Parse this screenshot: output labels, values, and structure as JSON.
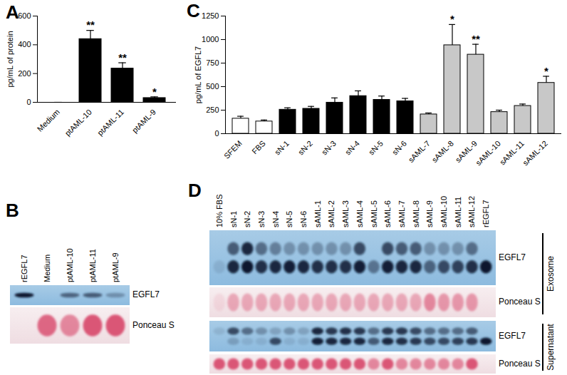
{
  "chart_data": [
    {
      "panel": "A",
      "type": "bar",
      "ylabel": "pg/mL of protein",
      "categories": [
        "Medium",
        "ptAML-10",
        "ptAML-11",
        "ptAML-9"
      ],
      "values": [
        0,
        440,
        235,
        30
      ],
      "errors": [
        0,
        60,
        40,
        8
      ],
      "significance": [
        null,
        "**",
        "**",
        "*"
      ],
      "color": "#000000",
      "ylim": [
        0,
        600
      ],
      "yticks": [
        0,
        200,
        400,
        600
      ]
    },
    {
      "panel": "C",
      "type": "bar",
      "ylabel": "pg/mL of EGFL7",
      "categories": [
        "SFEM",
        "FBS",
        "sN-1",
        "sN-2",
        "sN-3",
        "sN-4",
        "sN-5",
        "sN-6",
        "sAML-7",
        "sAML-8",
        "sAML-9",
        "sAML-10",
        "sAML-11",
        "sAML-12"
      ],
      "values": [
        160,
        130,
        255,
        265,
        330,
        400,
        360,
        345,
        205,
        940,
        840,
        230,
        295,
        540
      ],
      "errors": [
        25,
        15,
        20,
        25,
        50,
        55,
        40,
        30,
        15,
        220,
        110,
        20,
        20,
        70
      ],
      "significance": [
        null,
        null,
        null,
        null,
        null,
        null,
        null,
        null,
        null,
        "*",
        "**",
        null,
        null,
        "*"
      ],
      "colors": [
        "#ffffff",
        "#ffffff",
        "#000000",
        "#000000",
        "#000000",
        "#000000",
        "#000000",
        "#000000",
        "#c8c8c8",
        "#c8c8c8",
        "#c8c8c8",
        "#c8c8c8",
        "#c8c8c8",
        "#c8c8c8"
      ],
      "ylim": [
        0,
        1250
      ],
      "yticks": [
        0,
        250,
        500,
        750,
        1000,
        1250
      ]
    }
  ],
  "blots": [
    {
      "panel": "B",
      "lanes": [
        "rEGFL7",
        "Medium",
        "ptAML-10",
        "ptAML-11",
        "ptAML-9"
      ],
      "rows": [
        {
          "label": "EGFL7",
          "kind": "western",
          "bands": [
            [
              1,
              0,
              0.55,
              0.6,
              0.3
            ]
          ]
        },
        {
          "label": "Ponceau S",
          "kind": "ponceau",
          "bands": [
            [
              0,
              0.8,
              0.6,
              0.9,
              0.9
            ]
          ]
        }
      ]
    },
    {
      "panel": "D",
      "lanes": [
        "10% FBS",
        "sN-1",
        "sN-2",
        "sN-3",
        "sN-4",
        "sN-5",
        "sN-6",
        "sAML-1",
        "sAML-2",
        "sAML-3",
        "sAML-4",
        "sAML-5",
        "sAML-6",
        "sAML-7",
        "sAML-8",
        "sAML-9",
        "sAML-10",
        "sAML-11",
        "sAML-12",
        "rEGFL7"
      ],
      "rows": [
        {
          "label": "EGFL7",
          "kind": "western",
          "bands": [
            [
              0,
              0.6,
              0.9,
              0.5,
              0.4,
              0.3,
              0.3,
              0.3,
              0.3,
              0.3,
              0.7,
              0,
              0.7,
              0.6,
              0.6,
              0.3,
              0.3,
              0.3,
              0.5,
              0
            ],
            [
              0.1,
              0.9,
              1,
              0.85,
              0.9,
              0.95,
              0.9,
              0.85,
              0.85,
              0.85,
              0.95,
              0.45,
              0.95,
              0.9,
              0.9,
              0.55,
              0.7,
              0.75,
              0.85,
              1
            ]
          ]
        },
        {
          "label": "Ponceau S",
          "kind": "ponceau",
          "bands": [
            [
              0.1,
              0.4,
              0.4,
              0.4,
              0.4,
              0.4,
              0.4,
              0.4,
              0.4,
              0.4,
              0.4,
              0.4,
              0.4,
              0.4,
              0.4,
              0.6,
              0.5,
              0.5,
              0.5,
              0
            ]
          ]
        },
        {
          "label": "EGFL7",
          "kind": "western",
          "bands": [
            [
              0.1,
              0.7,
              0.5,
              0.3,
              0.2,
              0.3,
              0.2,
              0.9,
              0.8,
              0.85,
              0.8,
              0.5,
              0.8,
              0.8,
              0.7,
              0.5,
              0.5,
              0.5,
              0.6,
              0
            ],
            [
              0,
              0.2,
              0.1,
              0.1,
              0.7,
              0.1,
              0.1,
              0.95,
              0.9,
              0.9,
              0.9,
              0.6,
              0.9,
              0.85,
              0.8,
              0.7,
              0.7,
              0.75,
              0.8,
              1
            ]
          ]
        },
        {
          "label": "Ponceau S",
          "kind": "ponceau",
          "bands": [
            [
              0.9,
              0.9,
              0.9,
              0.9,
              0.9,
              0.9,
              0.9,
              0.9,
              0.9,
              0.9,
              0.9,
              0.6,
              0.9,
              0.6,
              0.6,
              0.6,
              0.6,
              0.6,
              0.9,
              0
            ]
          ]
        }
      ],
      "groups": [
        {
          "label": "Exosome",
          "rows": [
            0,
            1
          ]
        },
        {
          "label": "Supernatant",
          "rows": [
            2,
            3
          ]
        }
      ]
    }
  ]
}
